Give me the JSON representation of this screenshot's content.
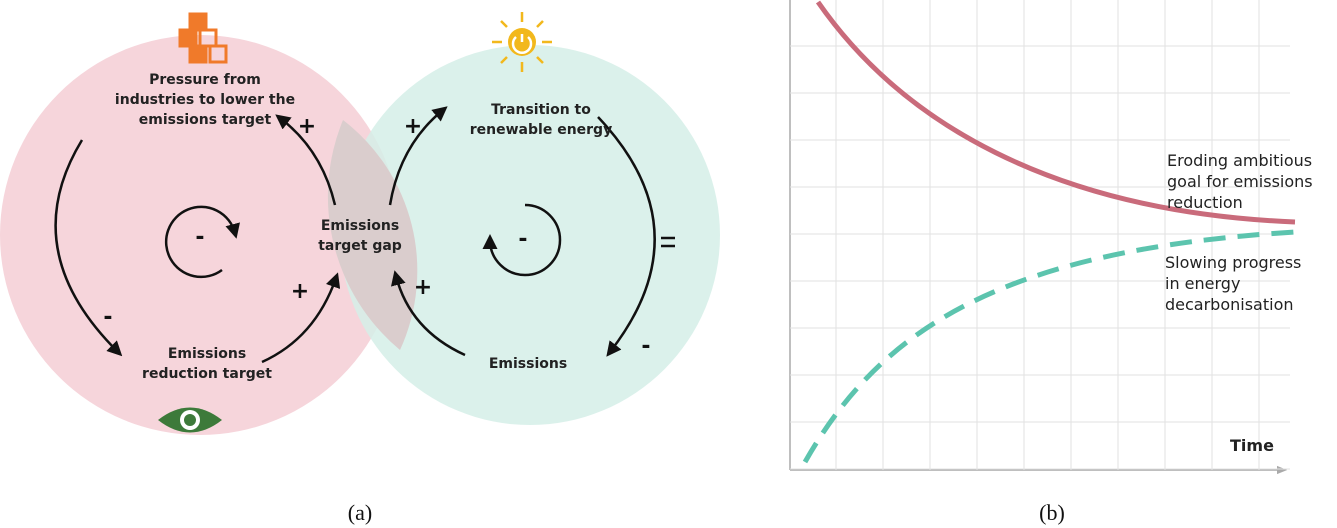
{
  "panel_a": {
    "caption": "(a)",
    "nodes": [
      {
        "lines": [
          "Pressure from",
          "industries to lower the",
          "emissions target"
        ]
      },
      {
        "lines": [
          "Emissions",
          "reduction target"
        ]
      },
      {
        "lines": [
          "Emissions",
          "target gap"
        ]
      },
      {
        "lines": [
          "Transition to",
          "renewable energy"
        ]
      },
      {
        "lines": [
          "Emissions"
        ]
      }
    ],
    "link_signs": [
      "+",
      "+",
      "+",
      "+",
      "-",
      "-"
    ],
    "loop_signs": [
      "-",
      "-"
    ]
  },
  "panel_b": {
    "caption": "(b)",
    "curves": [
      {
        "lines": [
          "Eroding ambitious",
          "goal for emissions",
          "reduction"
        ]
      },
      {
        "lines": [
          "Slowing progress",
          "in energy",
          "decarbonisation"
        ]
      }
    ],
    "x_axis_label": "Time"
  }
}
